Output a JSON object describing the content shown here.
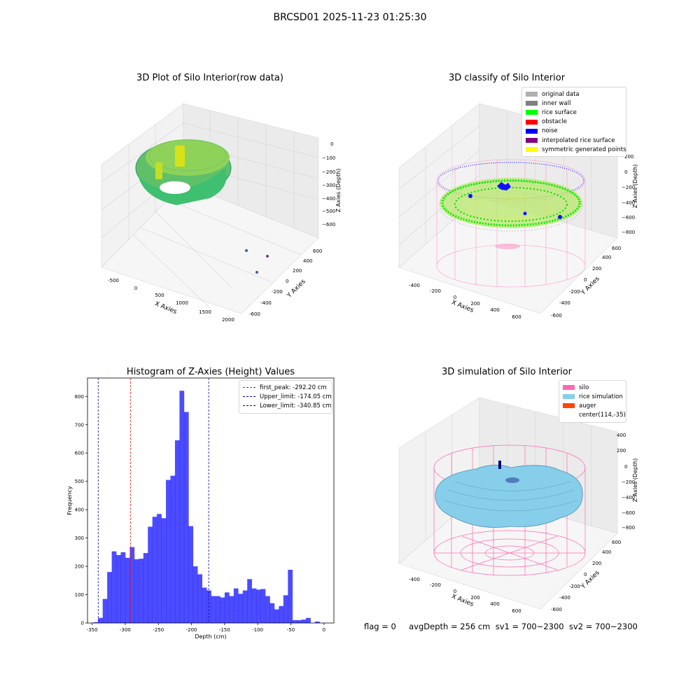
{
  "figure_title": "BRCSD01 2025-11-23 01:25:30",
  "panels": {
    "p1": {
      "title": "3D Plot of Silo Interior(row data)",
      "xlabel": "X Axies",
      "ylabel": "Y Axies",
      "zlabel": "Z Axies (Depth)",
      "xticks": [
        "-500",
        "0",
        "500",
        "1000",
        "1500",
        "2000"
      ],
      "yticks": [
        "-600",
        "-400",
        "-200",
        "0",
        "200",
        "400",
        "600"
      ],
      "zticks": [
        "0",
        "−100",
        "−200",
        "−300",
        "−400",
        "−500",
        "−600"
      ]
    },
    "p2": {
      "title": "3D classify of Silo Interior",
      "xlabel": "X Axies",
      "ylabel": "Y Axies",
      "zlabel": "Z Axies (Depth)",
      "xticks": [
        "-400",
        "-200",
        "0",
        "200",
        "400",
        "600"
      ],
      "yticks": [
        "-600",
        "-400",
        "-200",
        "0",
        "200",
        "400",
        "600"
      ],
      "zticks": [
        "200",
        "0",
        "−200",
        "−400",
        "−600",
        "−800"
      ],
      "legend": [
        {
          "label": "original data",
          "color": "#b0b0b0"
        },
        {
          "label": "inner wall",
          "color": "#808080"
        },
        {
          "label": "rice surface",
          "color": "#00ff00"
        },
        {
          "label": "obstacle",
          "color": "#ff0000"
        },
        {
          "label": "noise",
          "color": "#0000ff"
        },
        {
          "label": "interpolated rice surface",
          "color": "#800080"
        },
        {
          "label": "symmetric generated points",
          "color": "#ffff00"
        }
      ]
    },
    "p4": {
      "title": "3D simulation of Silo Interior",
      "xlabel": "X Axies",
      "ylabel": "Y Axies",
      "zlabel": "Z Axies (Depth)",
      "xticks": [
        "-400",
        "-200",
        "0",
        "200",
        "400",
        "600"
      ],
      "yticks": [
        "-600",
        "-400",
        "-200",
        "0",
        "200",
        "400",
        "600"
      ],
      "zticks": [
        "400",
        "200",
        "0",
        "−200",
        "−400",
        "−600",
        "−800"
      ],
      "legend": [
        {
          "label": "silo",
          "color": "#ff69b4"
        },
        {
          "label": "rice simulation",
          "color": "#87ceeb"
        },
        {
          "label": "auger",
          "color": "#ff4500"
        },
        {
          "label": "center(114,-35)",
          "color": ""
        }
      ]
    }
  },
  "footer": "flag = 0     avgDepth = 256 cm  sv1 = 700~2300  sv2 = 700~2300",
  "chart_data": {
    "type": "bar",
    "title": "Histogram of Z-Axies (Height) Values",
    "xlabel": "Depth (cm)",
    "ylabel": "Frequency",
    "xlim": [
      -357,
      15
    ],
    "ylim": [
      0,
      865
    ],
    "xticks": [
      -350,
      -300,
      -250,
      -200,
      -150,
      -100,
      -50,
      0
    ],
    "yticks": [
      0,
      100,
      200,
      300,
      400,
      500,
      600,
      700,
      800
    ],
    "bin_width": 6.82,
    "bin_start": -347.7,
    "values": [
      3,
      18,
      85,
      180,
      253,
      240,
      250,
      230,
      268,
      225,
      227,
      247,
      340,
      375,
      385,
      370,
      505,
      520,
      645,
      820,
      745,
      342,
      200,
      172,
      125,
      115,
      95,
      95,
      90,
      108,
      95,
      122,
      103,
      115,
      155,
      122,
      118,
      120,
      95,
      70,
      48,
      60,
      98,
      188,
      10,
      10,
      12,
      18,
      0,
      5
    ],
    "color": "#0000ff",
    "vlines": [
      {
        "label": "first_peak: -292.20 cm",
        "x": -292.2,
        "color": "#ff0000"
      },
      {
        "label": "Upper_limit: -174.05 cm",
        "x": -174.05,
        "color": "#0000aa"
      },
      {
        "label": "Lower_limit: -340.85 cm",
        "x": -340.85,
        "color": "#0000aa"
      }
    ]
  }
}
